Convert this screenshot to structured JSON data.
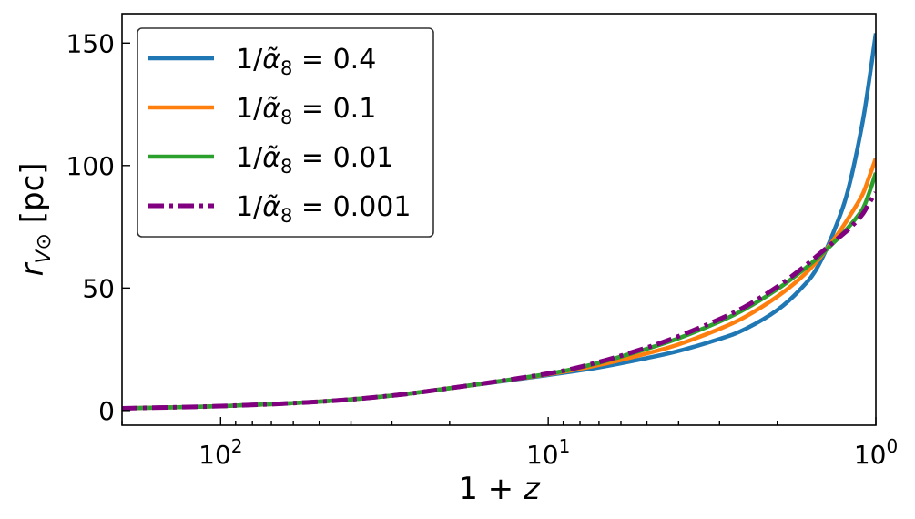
{
  "chart_data": {
    "type": "line",
    "x_scale": "log",
    "x_reversed": true,
    "xlabel": "1 + z",
    "ylabel": "r_V⊙ [pc]",
    "xlim": [
      200,
      1
    ],
    "ylim": [
      -6,
      162
    ],
    "x_ticks": [
      {
        "value": 100,
        "base": "10",
        "exp": "2"
      },
      {
        "value": 10,
        "base": "10",
        "exp": "1"
      },
      {
        "value": 1,
        "base": "10",
        "exp": "0"
      }
    ],
    "y_ticks": [
      0,
      50,
      100,
      150
    ],
    "legend_position": "upper-left",
    "series": [
      {
        "name": "1/α̃8 = 0.4",
        "legend": {
          "pre": "1/",
          "alpha": "α̃",
          "sub": "8",
          "post": " = 0.4"
        },
        "color": "#1f77b4",
        "dash": "solid",
        "x": [
          200,
          100,
          50,
          30,
          20,
          10,
          7,
          5,
          4,
          3,
          2.5,
          2,
          1.7,
          1.5,
          1.3,
          1.2,
          1.1,
          1.05,
          1
        ],
        "y": [
          0.9,
          1.8,
          3.6,
          6.1,
          9.1,
          14.5,
          17.6,
          21.4,
          24.3,
          29.2,
          33.3,
          41,
          49.5,
          59,
          78,
          93,
          117,
          134,
          154
        ]
      },
      {
        "name": "1/α̃8 = 0.1",
        "legend": {
          "pre": "1/",
          "alpha": "α̃",
          "sub": "8",
          "post": " = 0.1"
        },
        "color": "#ff7f0e",
        "dash": "solid",
        "x": [
          200,
          100,
          50,
          30,
          20,
          10,
          7,
          5,
          4,
          3,
          2.5,
          2,
          1.7,
          1.5,
          1.3,
          1.2,
          1.1,
          1.05,
          1
        ],
        "y": [
          0.9,
          1.8,
          3.6,
          6.1,
          9.1,
          14.8,
          18.6,
          23.3,
          27,
          33.3,
          38.3,
          46.5,
          54,
          61.5,
          72.5,
          79.5,
          88,
          95,
          103
        ]
      },
      {
        "name": "1/α̃8 = 0.01",
        "legend": {
          "pre": "1/",
          "alpha": "α̃",
          "sub": "8",
          "post": " = 0.01"
        },
        "color": "#2ca02c",
        "dash": "solid",
        "x": [
          200,
          100,
          50,
          30,
          20,
          10,
          7,
          5,
          4,
          3,
          2.5,
          2,
          1.7,
          1.5,
          1.3,
          1.2,
          1.1,
          1.05,
          1
        ],
        "y": [
          0.9,
          1.8,
          3.6,
          6.1,
          9.1,
          15,
          19.5,
          25.2,
          29.5,
          36.3,
          41.5,
          49.5,
          56.5,
          62.5,
          70.5,
          75.5,
          82,
          88.5,
          97
        ]
      },
      {
        "name": "1/α̃8 = 0.001",
        "legend": {
          "pre": "1/",
          "alpha": "α̃",
          "sub": "8",
          "post": " = 0.001"
        },
        "color": "#800080",
        "dash": "dashdot",
        "x": [
          200,
          100,
          50,
          30,
          20,
          10,
          7,
          5,
          4,
          3,
          2.5,
          2,
          1.7,
          1.5,
          1.3,
          1.2,
          1.1,
          1.05,
          1
        ],
        "y": [
          0.9,
          1.8,
          3.6,
          6.1,
          9.1,
          15.1,
          19.8,
          25.7,
          30.3,
          37.3,
          42.5,
          50.5,
          57.5,
          63.5,
          70.5,
          74.5,
          80,
          84.5,
          89
        ]
      }
    ]
  }
}
